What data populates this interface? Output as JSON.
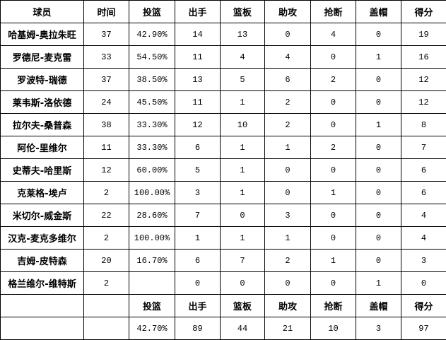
{
  "headers": [
    "球员",
    "时间",
    "投篮",
    "出手",
    "篮板",
    "助攻",
    "抢断",
    "盖帽",
    "得分"
  ],
  "rows": [
    [
      "哈基姆-奥拉朱旺",
      "37",
      "42.90%",
      "14",
      "13",
      "0",
      "4",
      "0",
      "19"
    ],
    [
      "罗德尼-麦克雷",
      "33",
      "54.50%",
      "11",
      "4",
      "4",
      "0",
      "1",
      "16"
    ],
    [
      "罗波特-瑞德",
      "37",
      "38.50%",
      "13",
      "5",
      "6",
      "2",
      "0",
      "12"
    ],
    [
      "莱韦斯-洛依德",
      "24",
      "45.50%",
      "11",
      "1",
      "2",
      "0",
      "0",
      "12"
    ],
    [
      "拉尔夫-桑普森",
      "38",
      "33.30%",
      "12",
      "10",
      "2",
      "0",
      "1",
      "8"
    ],
    [
      "阿伦-里维尔",
      "11",
      "33.30%",
      "6",
      "1",
      "1",
      "2",
      "0",
      "7"
    ],
    [
      "史蒂夫-哈里斯",
      "12",
      "60.00%",
      "5",
      "1",
      "0",
      "0",
      "0",
      "6"
    ],
    [
      "克莱格-埃卢",
      "2",
      "100.00%",
      "3",
      "1",
      "0",
      "1",
      "0",
      "6"
    ],
    [
      "米切尔-威金斯",
      "22",
      "28.60%",
      "7",
      "0",
      "3",
      "0",
      "0",
      "4"
    ],
    [
      "汉克-麦克多维尔",
      "2",
      "100.00%",
      "1",
      "1",
      "1",
      "0",
      "0",
      "4"
    ],
    [
      "吉姆-皮特森",
      "20",
      "16.70%",
      "6",
      "7",
      "2",
      "1",
      "0",
      "3"
    ],
    [
      "格兰维尔-维特斯",
      "2",
      "",
      "0",
      "0",
      "0",
      "0",
      "1",
      "0"
    ]
  ],
  "totals_headers": [
    "",
    "",
    "投篮",
    "出手",
    "篮板",
    "助攻",
    "抢断",
    "盖帽",
    "得分"
  ],
  "totals": [
    "",
    "",
    "42.70%",
    "89",
    "44",
    "21",
    "10",
    "3",
    "97"
  ]
}
